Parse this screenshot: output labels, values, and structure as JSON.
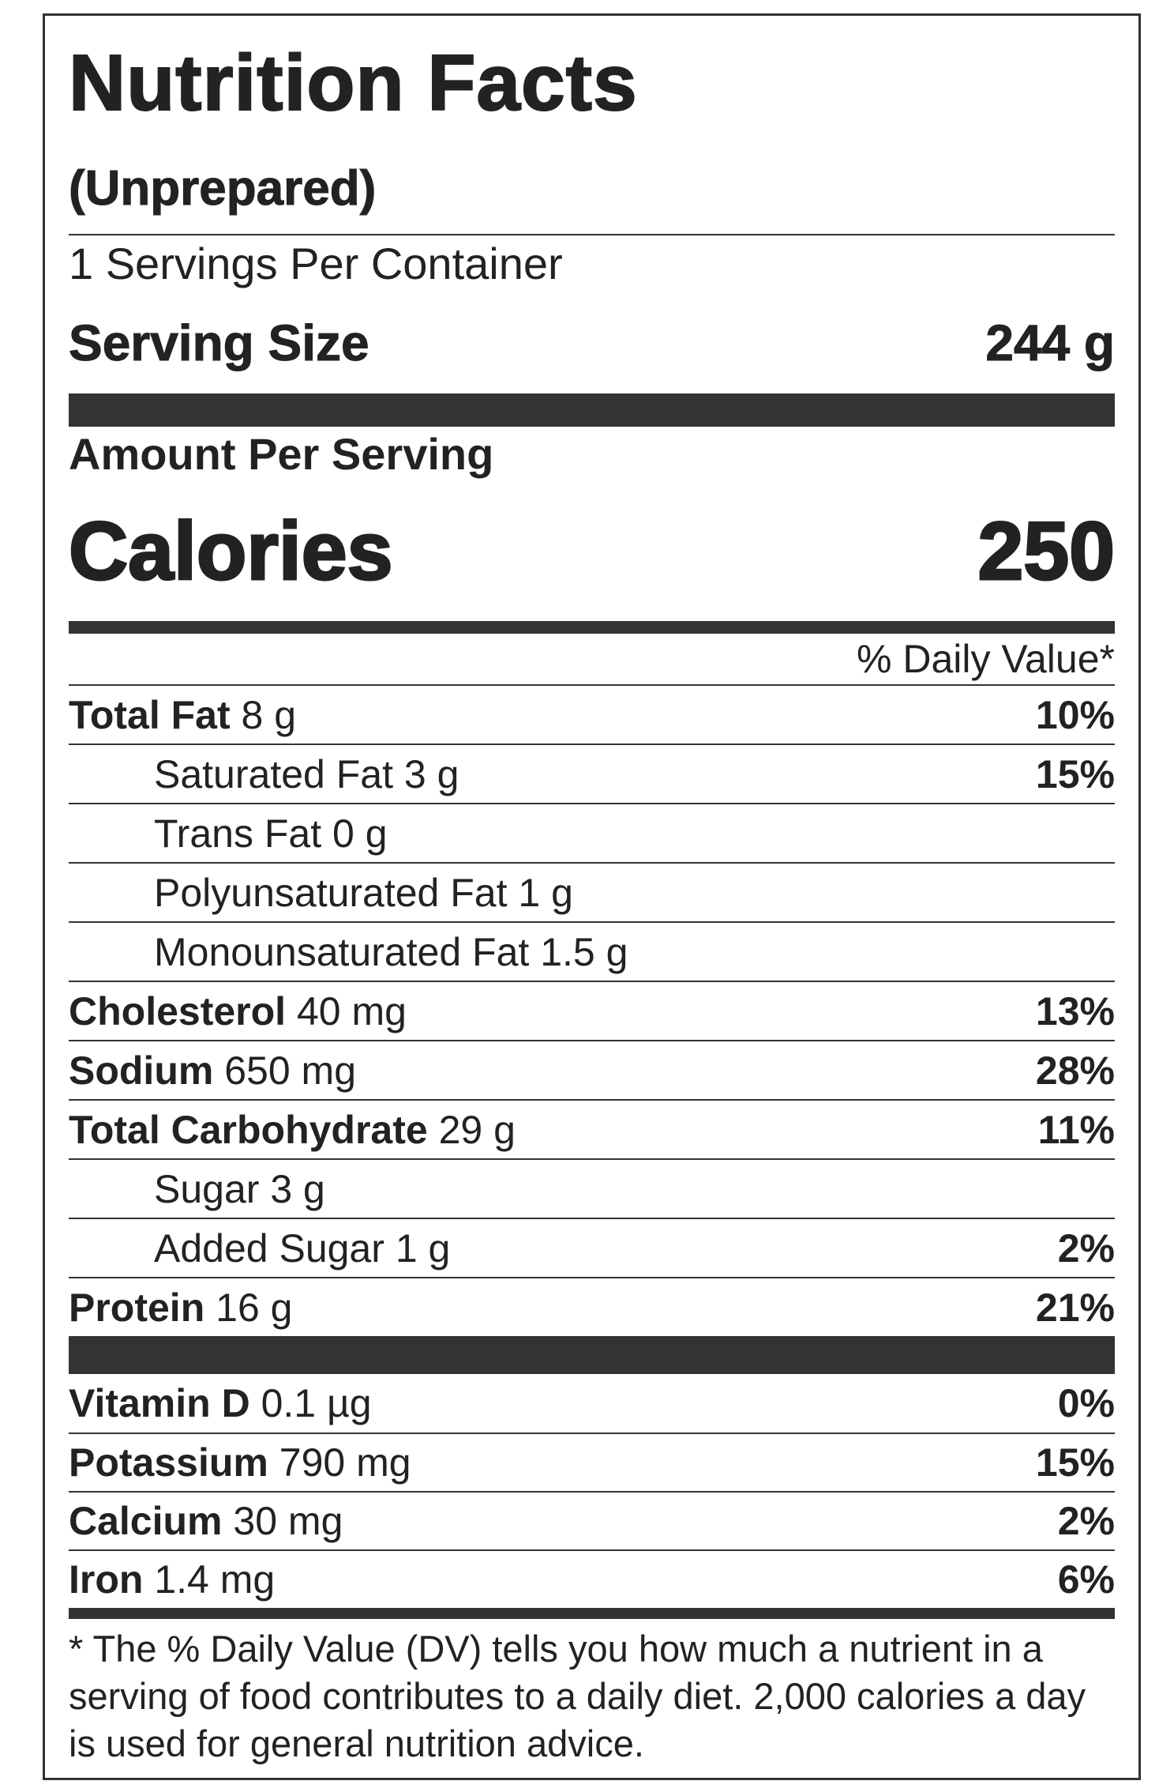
{
  "header": {
    "title": "Nutrition Facts",
    "subtitle": "(Unprepared)",
    "servings_per_container": "1 Servings Per Container",
    "serving_size": {
      "label": "Serving Size",
      "value": "244 g"
    },
    "amount_per_serving": "Amount Per Serving",
    "calories": {
      "label": "Calories",
      "value": "250"
    },
    "daily_value_header": "% Daily Value*"
  },
  "nutrients": [
    {
      "name": "Total Fat",
      "amount": "8 g",
      "dv": "10%",
      "indent": false
    },
    {
      "name": "Saturated Fat",
      "amount": "3 g",
      "dv": "15%",
      "indent": true
    },
    {
      "name": "Trans Fat",
      "amount": "0 g",
      "dv": null,
      "indent": true
    },
    {
      "name": "Polyunsaturated Fat",
      "amount": "1 g",
      "dv": null,
      "indent": true
    },
    {
      "name": "Monounsaturated Fat",
      "amount": "1.5 g",
      "dv": null,
      "indent": true
    },
    {
      "name": "Cholesterol",
      "amount": "40 mg",
      "dv": "13%",
      "indent": false
    },
    {
      "name": "Sodium",
      "amount": "650 mg",
      "dv": "28%",
      "indent": false
    },
    {
      "name": "Total Carbohydrate",
      "amount": "29 g",
      "dv": "11%",
      "indent": false
    },
    {
      "name": "Sugar",
      "amount": "3 g",
      "dv": null,
      "indent": true
    },
    {
      "name": "Added Sugar",
      "amount": "1 g",
      "dv": "2%",
      "indent": true
    },
    {
      "name": "Protein",
      "amount": "16 g",
      "dv": "21%",
      "indent": false
    }
  ],
  "vitamins_minerals": [
    {
      "name": "Vitamin D",
      "amount": "0.1 µg",
      "dv": "0%",
      "indent": false
    },
    {
      "name": "Potassium",
      "amount": "790 mg",
      "dv": "15%",
      "indent": false
    },
    {
      "name": "Calcium",
      "amount": "30 mg",
      "dv": "2%",
      "indent": false
    },
    {
      "name": "Iron",
      "amount": "1.4 mg",
      "dv": "6%",
      "indent": false
    }
  ],
  "footnote": "* The % Daily Value (DV) tells you how much a nutrient in a serving of food contributes to a daily diet. 2,000 calories a day is used for general nutrition advice."
}
